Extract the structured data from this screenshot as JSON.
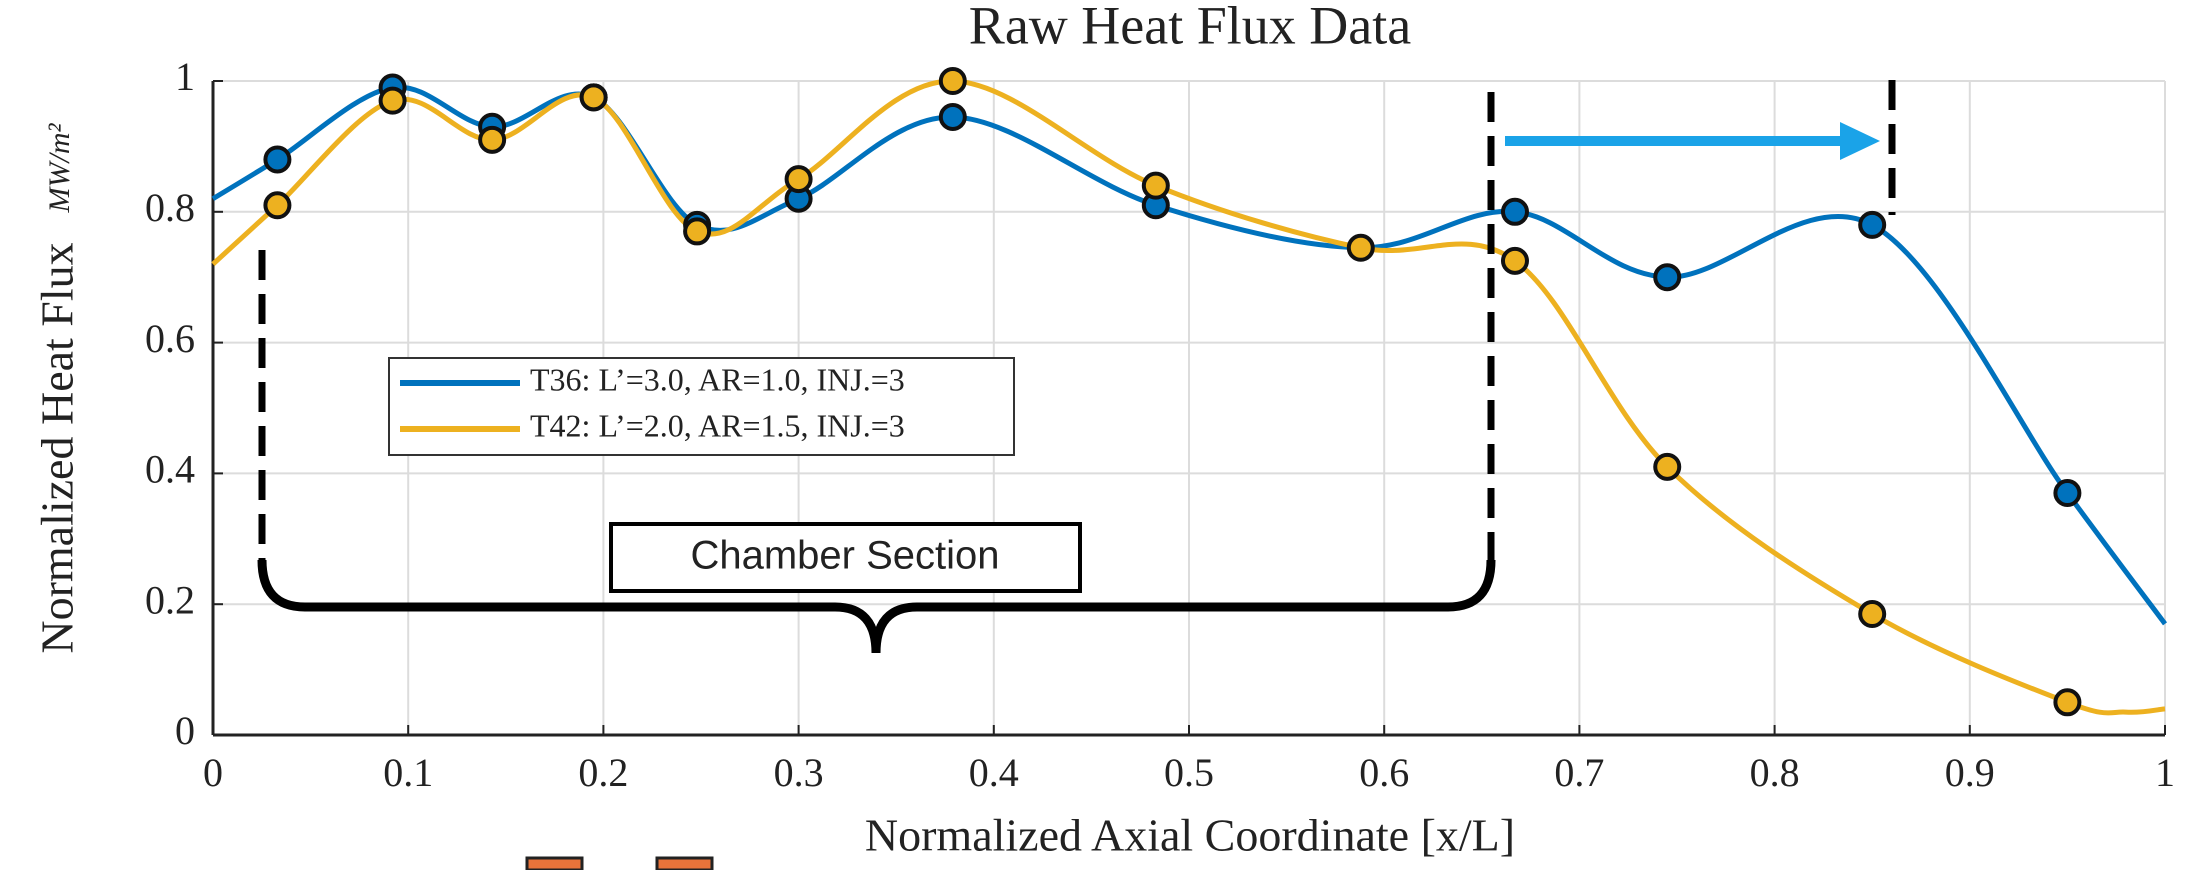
{
  "chart_data": {
    "type": "line",
    "title": "Raw Heat Flux Data",
    "x_label": "Normalized Axial Coordinate [x/L]",
    "y_label": "Normalized Heat Flux",
    "y_unit": "MW/m²",
    "xlim": [
      0,
      1
    ],
    "ylim": [
      0,
      1
    ],
    "xticks": [
      0,
      0.1,
      0.2,
      0.3,
      0.4,
      0.5,
      0.6,
      0.7,
      0.8,
      0.9,
      1
    ],
    "yticks": [
      0,
      0.2,
      0.4,
      0.6,
      0.8,
      1
    ],
    "grid": true,
    "legend": "center-left",
    "series": [
      {
        "name": "T36: L’=3.0, AR=1.0, INJ.=3",
        "color": "#0072bd",
        "x": [
          0.033,
          0.092,
          0.143,
          0.195,
          0.248,
          0.3,
          0.379,
          0.483,
          0.667,
          0.745,
          0.85,
          0.95
        ],
        "values": [
          0.88,
          0.99,
          0.93,
          0.975,
          0.78,
          0.82,
          0.945,
          0.81,
          0.8,
          0.7,
          0.78,
          0.37
        ],
        "curve": {
          "x": [
            0,
            0.033,
            0.092,
            0.143,
            0.195,
            0.248,
            0.3,
            0.379,
            0.483,
            0.588,
            0.667,
            0.745,
            0.85,
            0.95,
            1
          ],
          "values": [
            0.82,
            0.88,
            0.99,
            0.93,
            0.975,
            0.78,
            0.82,
            0.945,
            0.81,
            0.745,
            0.8,
            0.7,
            0.78,
            0.37,
            0.17
          ]
        }
      },
      {
        "name": "T42: L’=2.0, AR=1.5, INJ.=3",
        "color": "#edb120",
        "x": [
          0.033,
          0.092,
          0.143,
          0.195,
          0.248,
          0.3,
          0.379,
          0.483,
          0.588,
          0.667,
          0.745,
          0.85,
          0.95
        ],
        "values": [
          0.81,
          0.97,
          0.91,
          0.975,
          0.77,
          0.85,
          1.0,
          0.84,
          0.745,
          0.725,
          0.41,
          0.185,
          0.05
        ],
        "curve": {
          "x": [
            0,
            0.033,
            0.092,
            0.143,
            0.195,
            0.248,
            0.3,
            0.379,
            0.483,
            0.588,
            0.667,
            0.745,
            0.85,
            0.95,
            0.98,
            1
          ],
          "values": [
            0.72,
            0.81,
            0.97,
            0.91,
            0.975,
            0.77,
            0.85,
            1.0,
            0.84,
            0.745,
            0.725,
            0.41,
            0.185,
            0.05,
            0.035,
            0.04
          ]
        }
      }
    ],
    "annotation": "Chamber Section"
  }
}
